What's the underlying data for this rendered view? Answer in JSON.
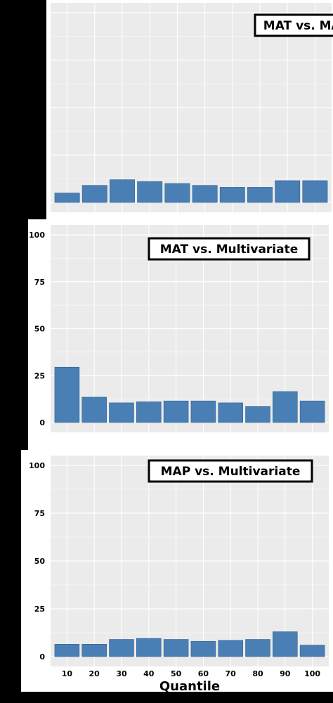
{
  "colors": {
    "background": "#000000",
    "panel_bg": "#ffffff",
    "plot_bg": "#ebebeb",
    "grid": "#ffffff",
    "bar": "#4a7fb5",
    "bar_edge": "#2f5f8f",
    "text": "#000000"
  },
  "chart_data": [
    {
      "type": "bar",
      "title": "MAT vs. MAP",
      "categories": [
        "10",
        "20",
        "30",
        "40",
        "50",
        "60",
        "70",
        "80",
        "90",
        "100"
      ],
      "values": [
        5,
        9,
        12,
        11,
        10,
        9,
        8,
        8,
        11.5,
        11.5
      ],
      "ylim": [
        0,
        105
      ],
      "yticks": [],
      "xticks": [],
      "xlabel": "",
      "grid": true
    },
    {
      "type": "bar",
      "title": "MAT vs. Multivariate",
      "categories": [
        "10",
        "20",
        "30",
        "40",
        "50",
        "60",
        "70",
        "80",
        "90",
        "100"
      ],
      "values": [
        29.5,
        13.5,
        10.5,
        11,
        11.5,
        11.5,
        10.5,
        8.5,
        16.5,
        11.5
      ],
      "ylim": [
        0,
        105
      ],
      "yticks": [
        "0",
        "25",
        "50",
        "75",
        "100"
      ],
      "xticks": [],
      "xlabel": "",
      "grid": true
    },
    {
      "type": "bar",
      "title": "MAP vs. Multivariate",
      "categories": [
        "10",
        "20",
        "30",
        "40",
        "50",
        "60",
        "70",
        "80",
        "90",
        "100"
      ],
      "values": [
        6.5,
        6.5,
        9,
        9.5,
        9,
        8,
        8.5,
        9,
        13,
        6
      ],
      "ylim": [
        0,
        105
      ],
      "yticks": [
        "0",
        "25",
        "50",
        "75",
        "100"
      ],
      "xticks": [
        "10",
        "20",
        "30",
        "40",
        "50",
        "60",
        "70",
        "80",
        "90",
        "100"
      ],
      "xlabel": "Quantile",
      "grid": true
    }
  ]
}
